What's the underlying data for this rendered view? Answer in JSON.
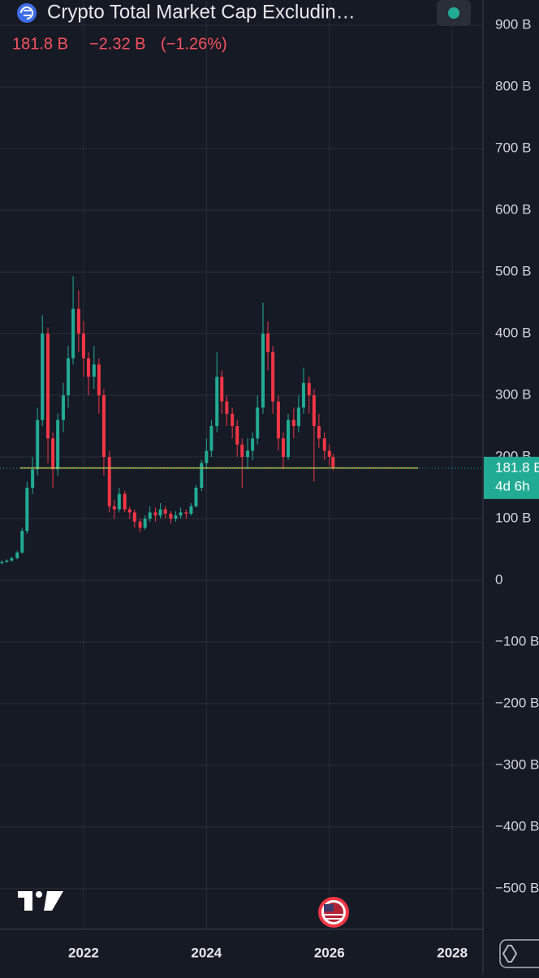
{
  "chart_data": {
    "type": "candlestick",
    "title": "Crypto Total Market Cap Excludin…",
    "price": {
      "value": 181.8,
      "label": "181.8 B"
    },
    "change": {
      "value": -2.32,
      "label": "−2.32 B"
    },
    "change_percent": {
      "value": -1.26,
      "label": "(−1.26%)"
    },
    "countdown": "4d 6h",
    "up_color": "#22ab94",
    "down_color": "#f23645",
    "level_line": {
      "value": 182,
      "color": "#c9c94a"
    },
    "x": [
      2020.67,
      2020.75,
      2020.83,
      2020.92,
      2021.0,
      2021.08,
      2021.17,
      2021.25,
      2021.33,
      2021.42,
      2021.5,
      2021.58,
      2021.67,
      2021.75,
      2021.83,
      2021.92,
      2022.0,
      2022.08,
      2022.17,
      2022.25,
      2022.33,
      2022.42,
      2022.5,
      2022.58,
      2022.67,
      2022.75,
      2022.83,
      2022.92,
      2023.0,
      2023.08,
      2023.17,
      2023.25,
      2023.33,
      2023.42,
      2023.5,
      2023.58,
      2023.67,
      2023.75,
      2023.83,
      2023.92,
      2024.0,
      2024.08,
      2024.17,
      2024.25,
      2024.33,
      2024.42,
      2024.5,
      2024.58,
      2024.67,
      2024.75,
      2024.83,
      2024.92,
      2025.0,
      2025.08,
      2025.17,
      2025.25,
      2025.33,
      2025.42,
      2025.5,
      2025.58,
      2025.67,
      2025.75,
      2025.83,
      2025.92,
      2026.0,
      2026.06
    ],
    "open": [
      28,
      30,
      32,
      36,
      45,
      80,
      150,
      180,
      260,
      400,
      230,
      180,
      260,
      300,
      360,
      440,
      400,
      360,
      330,
      350,
      300,
      200,
      120,
      115,
      140,
      115,
      110,
      95,
      85,
      100,
      110,
      105,
      115,
      108,
      100,
      105,
      110,
      108,
      120,
      150,
      190,
      210,
      250,
      330,
      290,
      270,
      250,
      220,
      200,
      210,
      230,
      280,
      400,
      370,
      290,
      230,
      200,
      260,
      250,
      280,
      320,
      300,
      250,
      230,
      210,
      200
    ],
    "high": [
      32,
      34,
      38,
      48,
      85,
      160,
      200,
      280,
      430,
      410,
      240,
      270,
      320,
      380,
      493,
      470,
      420,
      370,
      380,
      360,
      310,
      210,
      130,
      150,
      145,
      120,
      115,
      100,
      105,
      120,
      118,
      125,
      120,
      112,
      112,
      118,
      115,
      125,
      155,
      195,
      230,
      260,
      370,
      340,
      300,
      280,
      260,
      230,
      230,
      240,
      300,
      450,
      420,
      380,
      300,
      240,
      270,
      280,
      300,
      345,
      330,
      310,
      270,
      240,
      220,
      205
    ],
    "low": [
      26,
      28,
      30,
      34,
      43,
      75,
      140,
      170,
      250,
      190,
      150,
      170,
      240,
      280,
      350,
      370,
      330,
      300,
      310,
      270,
      170,
      110,
      100,
      110,
      110,
      100,
      85,
      78,
      82,
      95,
      95,
      100,
      100,
      92,
      95,
      100,
      100,
      105,
      118,
      145,
      180,
      200,
      240,
      270,
      250,
      230,
      200,
      150,
      180,
      195,
      220,
      270,
      340,
      270,
      210,
      180,
      195,
      230,
      240,
      270,
      270,
      160,
      215,
      195,
      185,
      178
    ],
    "close": [
      30,
      32,
      36,
      45,
      80,
      150,
      180,
      260,
      400,
      230,
      180,
      260,
      300,
      360,
      440,
      400,
      360,
      330,
      350,
      300,
      200,
      120,
      115,
      140,
      115,
      110,
      95,
      85,
      100,
      110,
      105,
      115,
      108,
      100,
      105,
      110,
      108,
      120,
      150,
      190,
      210,
      250,
      330,
      290,
      270,
      250,
      220,
      200,
      210,
      230,
      280,
      400,
      370,
      290,
      230,
      200,
      260,
      250,
      280,
      320,
      300,
      250,
      230,
      210,
      200,
      181.8
    ],
    "xlim": [
      2020.64,
      2028.5
    ],
    "xticks": [
      2022,
      2024,
      2026,
      2028
    ],
    "ylim": [
      -566,
      941
    ],
    "yticks": [
      {
        "value": 900,
        "label": "900 B"
      },
      {
        "value": 800,
        "label": "800 B"
      },
      {
        "value": 700,
        "label": "700 B"
      },
      {
        "value": 600,
        "label": "600 B"
      },
      {
        "value": 500,
        "label": "500 B"
      },
      {
        "value": 400,
        "label": "400 B"
      },
      {
        "value": 300,
        "label": "300 B"
      },
      {
        "value": 200,
        "label": "200 B"
      },
      {
        "value": 100,
        "label": "100 B"
      },
      0,
      {
        "value": -100,
        "label": "−100 B"
      },
      {
        "value": -200,
        "label": "−200 B"
      },
      {
        "value": -300,
        "label": "−300 B"
      },
      {
        "value": -400,
        "label": "−400 B"
      },
      {
        "value": -500,
        "label": "−500 B"
      }
    ],
    "grid": true
  }
}
